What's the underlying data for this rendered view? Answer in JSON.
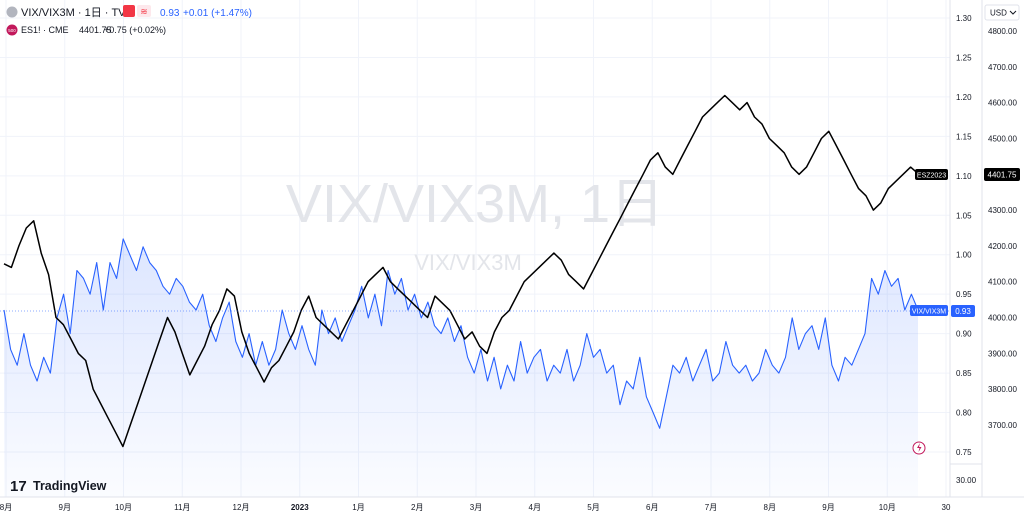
{
  "header": {
    "main_symbol": "VIX/VIX3M · 1日 · TVC",
    "main_value": "0.93",
    "main_change": "+0.01 (+1.47%)",
    "compare_symbol": "ES1! · CME",
    "compare_value": "4401.75",
    "compare_change": "+0.75 (+0.02%)",
    "compare_badge": "500",
    "currency": "USD",
    "toggle_label": "≋"
  },
  "watermark": {
    "primary": "VIX/VIX3M, 1日",
    "secondary": "VIX/VIX3M"
  },
  "brand": {
    "name": "TradingView",
    "logo": "17"
  },
  "badges": {
    "es_label": "ESZ2023",
    "es_value": "4401.75",
    "vix_label": "VIX/VIX3M",
    "vix_value": "0.93"
  },
  "colors": {
    "ratio": "#2962ff",
    "es": "#000000",
    "grid": "#f0f3fa",
    "accent_pink": "#c2185b"
  },
  "chart_data": {
    "type": "line",
    "x_ticks": [
      "8月",
      "9月",
      "10月",
      "11月",
      "12月",
      "2023",
      "1月",
      "2月",
      "3月",
      "4月",
      "5月",
      "6月",
      "7月",
      "8月",
      "9月",
      "10月",
      "30"
    ],
    "y_left": {
      "ticks": [
        "1.30",
        "1.25",
        "1.20",
        "1.15",
        "1.10",
        "1.05",
        "1.00",
        "0.95",
        "0.90",
        "0.85",
        "0.80",
        "0.75"
      ],
      "range": [
        0.73,
        1.31
      ],
      "extra_labels": [
        "30.00"
      ]
    },
    "y_right": {
      "ticks": [
        "4800.00",
        "4700.00",
        "4600.00",
        "4500.00",
        "4400.00",
        "4300.00",
        "4200.00",
        "4100.00",
        "4000.00",
        "3900.00",
        "3800.00",
        "3700.00"
      ]
    },
    "series": [
      {
        "name": "VIX/VIX3M",
        "axis": "left",
        "color": "#2962ff",
        "area": true,
        "values": [
          0.93,
          0.88,
          0.86,
          0.9,
          0.86,
          0.84,
          0.87,
          0.85,
          0.92,
          0.95,
          0.9,
          0.98,
          0.97,
          0.95,
          0.99,
          0.93,
          0.99,
          0.97,
          1.02,
          1.0,
          0.98,
          1.01,
          0.99,
          0.98,
          0.96,
          0.95,
          0.97,
          0.96,
          0.94,
          0.93,
          0.95,
          0.91,
          0.89,
          0.92,
          0.94,
          0.89,
          0.87,
          0.9,
          0.86,
          0.89,
          0.86,
          0.88,
          0.93,
          0.9,
          0.88,
          0.91,
          0.88,
          0.86,
          0.93,
          0.9,
          0.92,
          0.89,
          0.91,
          0.93,
          0.96,
          0.92,
          0.95,
          0.91,
          0.98,
          0.95,
          0.97,
          0.93,
          0.95,
          0.92,
          0.94,
          0.91,
          0.9,
          0.92,
          0.89,
          0.91,
          0.87,
          0.85,
          0.88,
          0.84,
          0.87,
          0.83,
          0.86,
          0.84,
          0.89,
          0.85,
          0.87,
          0.88,
          0.84,
          0.86,
          0.85,
          0.88,
          0.84,
          0.86,
          0.9,
          0.87,
          0.88,
          0.85,
          0.86,
          0.81,
          0.84,
          0.83,
          0.87,
          0.82,
          0.8,
          0.78,
          0.82,
          0.86,
          0.85,
          0.87,
          0.84,
          0.86,
          0.88,
          0.84,
          0.85,
          0.89,
          0.86,
          0.85,
          0.86,
          0.84,
          0.85,
          0.88,
          0.86,
          0.85,
          0.87,
          0.92,
          0.88,
          0.9,
          0.91,
          0.88,
          0.92,
          0.86,
          0.84,
          0.87,
          0.86,
          0.88,
          0.9,
          0.97,
          0.95,
          0.98,
          0.96,
          0.97,
          0.93,
          0.95,
          0.93
        ]
      },
      {
        "name": "ESZ2023",
        "axis": "right",
        "color": "#000000",
        "area": false,
        "values": [
          4150,
          4140,
          4200,
          4250,
          4270,
          4180,
          4120,
          4000,
          3980,
          3940,
          3900,
          3880,
          3800,
          3760,
          3720,
          3680,
          3640,
          3700,
          3760,
          3820,
          3880,
          3940,
          4000,
          3960,
          3900,
          3840,
          3880,
          3920,
          3980,
          4020,
          4080,
          4060,
          3960,
          3900,
          3860,
          3820,
          3860,
          3880,
          3920,
          3960,
          4020,
          4060,
          4000,
          3980,
          3960,
          3940,
          3980,
          4020,
          4060,
          4100,
          4120,
          4140,
          4100,
          4080,
          4060,
          4040,
          4020,
          4000,
          4060,
          4040,
          4020,
          3980,
          3940,
          3960,
          3920,
          3900,
          3960,
          4000,
          4020,
          4060,
          4100,
          4120,
          4140,
          4160,
          4180,
          4160,
          4120,
          4100,
          4080,
          4120,
          4160,
          4200,
          4240,
          4280,
          4320,
          4360,
          4400,
          4440,
          4460,
          4420,
          4400,
          4440,
          4480,
          4520,
          4560,
          4580,
          4600,
          4620,
          4600,
          4580,
          4600,
          4560,
          4540,
          4500,
          4480,
          4460,
          4420,
          4400,
          4420,
          4460,
          4500,
          4520,
          4480,
          4440,
          4400,
          4360,
          4340,
          4300,
          4320,
          4360,
          4380,
          4400,
          4420,
          4401.75
        ]
      }
    ]
  }
}
